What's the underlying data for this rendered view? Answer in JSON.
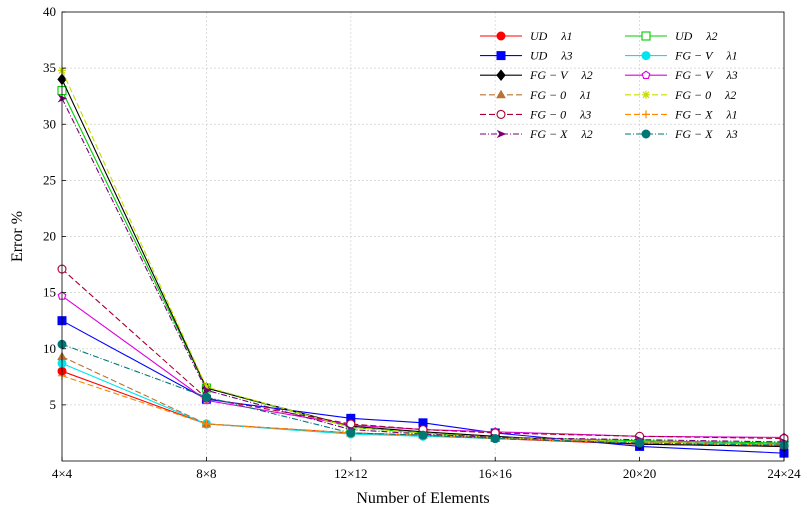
{
  "chart_data": {
    "type": "line",
    "title": "",
    "xlabel": "Number of Elements",
    "ylabel": "Error %",
    "x": [
      4,
      8,
      12,
      16,
      20,
      24
    ],
    "x_tick_labels": [
      "4×4",
      "8×8",
      "12×12",
      "16×16",
      "20×20",
      "24×24"
    ],
    "y_ticks": [
      5,
      10,
      15,
      20,
      25,
      30,
      35,
      40
    ],
    "ylim": [
      0,
      40
    ],
    "xlim": [
      4,
      24
    ],
    "grid": true,
    "legend_position": "top-right",
    "series": [
      {
        "name": "UD λ1",
        "label_main": "UD",
        "label_sub": "λ1",
        "color": "#ff0000",
        "dash": "solid",
        "marker": "circle-filled",
        "x": [
          4,
          8,
          12,
          14,
          16,
          20,
          24
        ],
        "values": [
          8.0,
          3.3,
          2.5,
          2.3,
          2.0,
          1.5,
          1.3
        ]
      },
      {
        "name": "UD λ2",
        "label_main": "UD",
        "label_sub": "λ2",
        "color": "#00cc00",
        "dash": "solid",
        "marker": "square-open",
        "x": [
          4,
          8,
          12,
          14,
          16,
          20,
          24
        ],
        "values": [
          33.0,
          6.5,
          3.0,
          2.5,
          2.1,
          1.8,
          1.6
        ]
      },
      {
        "name": "UD λ3",
        "label_main": "UD",
        "label_sub": "λ3",
        "color": "#0000ff",
        "dash": "solid",
        "marker": "square-filled",
        "x": [
          4,
          8,
          12,
          14,
          16,
          20,
          24
        ],
        "values": [
          12.5,
          5.5,
          3.8,
          3.4,
          2.5,
          1.3,
          0.7
        ]
      },
      {
        "name": "FG − V λ1",
        "label_main": "FG − V",
        "label_sub": "λ1",
        "color": "#00e5ee",
        "dash": "solid",
        "marker": "circle-filled",
        "x": [
          4,
          8,
          12,
          14,
          16,
          20,
          24
        ],
        "values": [
          8.7,
          3.3,
          2.4,
          2.2,
          2.0,
          1.7,
          1.5
        ]
      },
      {
        "name": "FG − V λ2",
        "label_main": "FG − V",
        "label_sub": "λ2",
        "color": "#000000",
        "dash": "solid",
        "marker": "diamond-filled",
        "x": [
          4,
          8,
          12,
          14,
          16,
          20,
          24
        ],
        "values": [
          34.0,
          6.5,
          3.1,
          2.6,
          2.2,
          1.5,
          1.3
        ]
      },
      {
        "name": "FG − V λ3",
        "label_main": "FG − V",
        "label_sub": "λ3",
        "color": "#dd00dd",
        "dash": "solid",
        "marker": "pentagon-open",
        "x": [
          4,
          8,
          12,
          14,
          16,
          20,
          24
        ],
        "values": [
          14.7,
          5.4,
          3.2,
          2.8,
          2.6,
          2.2,
          2.1
        ]
      },
      {
        "name": "FG − 0 λ1",
        "label_main": "FG − 0",
        "label_sub": "λ1",
        "color": "#b87333",
        "dash": "6,3",
        "marker": "triangle-filled",
        "x": [
          4,
          8,
          12,
          14,
          16,
          20,
          24
        ],
        "values": [
          9.3,
          3.3,
          2.5,
          2.3,
          2.0,
          1.7,
          1.5
        ]
      },
      {
        "name": "FG − 0 λ2",
        "label_main": "FG − 0",
        "label_sub": "λ2",
        "color": "#c8dc00",
        "dash": "6,3",
        "marker": "star",
        "x": [
          4,
          8,
          12,
          14,
          16,
          20,
          24
        ],
        "values": [
          34.8,
          6.6,
          3.0,
          2.5,
          2.1,
          1.7,
          1.4
        ]
      },
      {
        "name": "FG − 0 λ3",
        "label_main": "FG − 0",
        "label_sub": "λ3",
        "color": "#aa0033",
        "dash": "6,3",
        "marker": "circle-half",
        "x": [
          4,
          8,
          12,
          14,
          16,
          20,
          24
        ],
        "values": [
          17.1,
          5.6,
          3.3,
          2.8,
          2.5,
          2.2,
          2.0
        ]
      },
      {
        "name": "FG − X λ1",
        "label_main": "FG − X",
        "label_sub": "λ1",
        "color": "#ff8800",
        "dash": "6,3",
        "marker": "plus",
        "x": [
          4,
          8,
          12,
          14,
          16,
          20,
          24
        ],
        "values": [
          7.6,
          3.3,
          2.5,
          2.3,
          2.0,
          1.6,
          1.4
        ]
      },
      {
        "name": "FG − X λ2",
        "label_main": "FG − X",
        "label_sub": "λ2",
        "color": "#7a007a",
        "dash": "6,2,1,2",
        "marker": "arrow",
        "x": [
          4,
          8,
          12,
          14,
          16,
          20,
          24
        ],
        "values": [
          32.3,
          6.3,
          2.8,
          2.4,
          2.1,
          1.9,
          1.7
        ]
      },
      {
        "name": "FG − X λ3",
        "label_main": "FG − X",
        "label_sub": "λ3",
        "color": "#007777",
        "dash": "6,2,1,2",
        "marker": "circle-filled",
        "x": [
          4,
          8,
          12,
          14,
          16,
          20,
          24
        ],
        "values": [
          10.4,
          5.7,
          2.5,
          2.3,
          2.0,
          1.6,
          1.4
        ]
      }
    ]
  }
}
